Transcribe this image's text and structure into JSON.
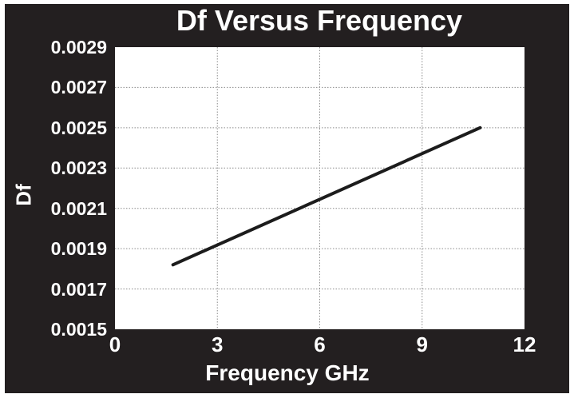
{
  "chart_data": {
    "type": "line",
    "title": "Df Versus Frequency",
    "xlabel": "Frequency GHz",
    "ylabel": "Df",
    "xlim": [
      0,
      12
    ],
    "ylim": [
      0.0015,
      0.0029
    ],
    "x_ticks": [
      0,
      3,
      6,
      9,
      12
    ],
    "x_tick_labels": [
      "0",
      "3",
      "6",
      "9",
      "12"
    ],
    "y_ticks": [
      0.0015,
      0.0017,
      0.0019,
      0.0021,
      0.0023,
      0.0025,
      0.0027,
      0.0029
    ],
    "y_tick_labels": [
      "0.0015",
      "0.0017",
      "0.0019",
      "0.0021",
      "0.0023",
      "0.0025",
      "0.0027",
      "0.0029"
    ],
    "grid": true,
    "gridlines_horizontal_at": [
      0.0017,
      0.0019,
      0.0021,
      0.0023,
      0.0025,
      0.0027
    ],
    "gridlines_vertical_at": [
      3,
      6,
      9
    ],
    "legend": "none",
    "series": [
      {
        "name": "Df",
        "points": [
          [
            1.7,
            0.00182
          ],
          [
            10.7,
            0.0025
          ]
        ]
      }
    ],
    "colors": {
      "figure_background": "#231f20",
      "plot_background": "#ffffff",
      "text": "#ffffff",
      "gridline": "#8c8c8c",
      "line": "#1c1c1c",
      "outer_border": "#ffffff"
    }
  }
}
